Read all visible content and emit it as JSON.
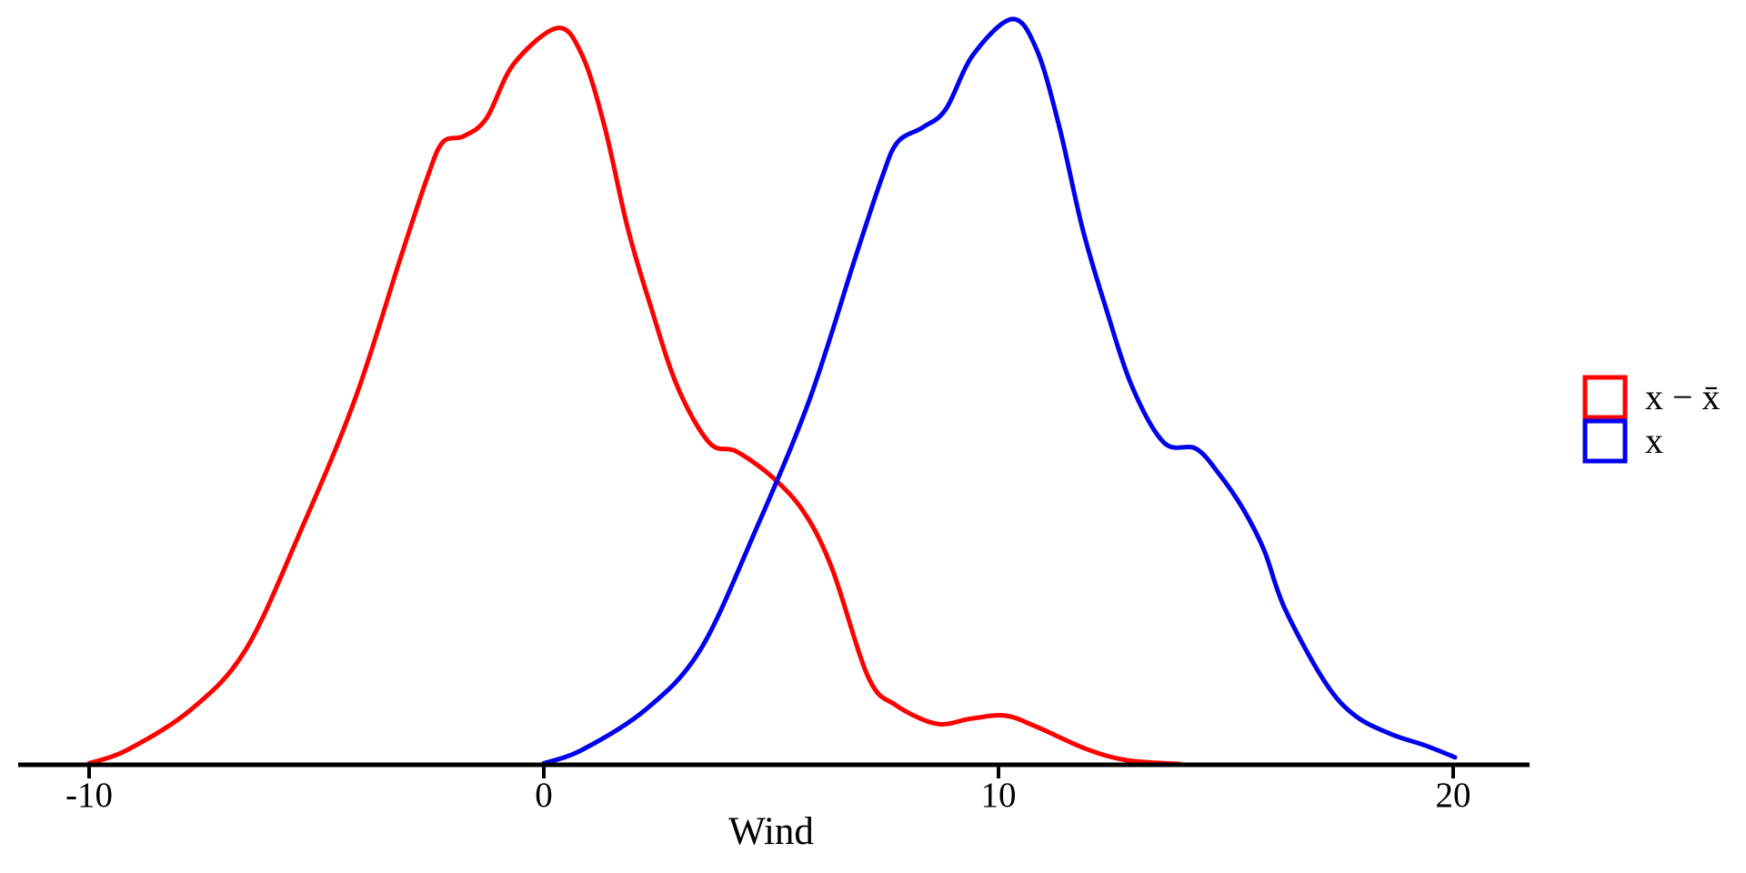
{
  "figure": {
    "background_color": "#FFFFFF",
    "axis_color": "#000000",
    "text_color": "#000000"
  },
  "chart_data": {
    "type": "line",
    "subtype": "kernel-density",
    "title": "",
    "xlabel": "Wind",
    "ylabel": "",
    "xlim": [
      -10,
      20
    ],
    "x_ticks": [
      -10,
      0,
      10,
      20
    ],
    "x_tick_labels": [
      "-10",
      "0",
      "10",
      "20"
    ],
    "y_axis_shown": false,
    "y_units": "relative density (0 = baseline, 1 = maximum of blue curve)",
    "grid": false,
    "legend_position": "right",
    "series": [
      {
        "name": "x − x̄",
        "color": "#FF0000",
        "points": [
          [
            -10.0,
            0.002
          ],
          [
            -9.16,
            0.02
          ],
          [
            -7.76,
            0.074
          ],
          [
            -6.56,
            0.154
          ],
          [
            -5.36,
            0.312
          ],
          [
            -4.16,
            0.489
          ],
          [
            -3.16,
            0.678
          ],
          [
            -2.56,
            0.788
          ],
          [
            -2.22,
            0.835
          ],
          [
            -1.76,
            0.843
          ],
          [
            -1.26,
            0.867
          ],
          [
            -0.66,
            0.94
          ],
          [
            0.3,
            0.988
          ],
          [
            0.84,
            0.952
          ],
          [
            1.34,
            0.855
          ],
          [
            1.84,
            0.721
          ],
          [
            2.34,
            0.617
          ],
          [
            2.94,
            0.507
          ],
          [
            3.64,
            0.432
          ],
          [
            4.24,
            0.42
          ],
          [
            5.04,
            0.385
          ],
          [
            5.74,
            0.337
          ],
          [
            6.34,
            0.263
          ],
          [
            7.14,
            0.117
          ],
          [
            7.74,
            0.08
          ],
          [
            8.64,
            0.055
          ],
          [
            9.4,
            0.062
          ],
          [
            10.14,
            0.066
          ],
          [
            10.8,
            0.052
          ],
          [
            11.94,
            0.021
          ],
          [
            12.84,
            0.006
          ],
          [
            14.0,
            0.001
          ]
        ]
      },
      {
        "name": "x",
        "color": "#0000EE",
        "points": [
          [
            0.0,
            0.002
          ],
          [
            0.84,
            0.02
          ],
          [
            2.24,
            0.074
          ],
          [
            3.44,
            0.154
          ],
          [
            4.64,
            0.312
          ],
          [
            5.84,
            0.489
          ],
          [
            6.84,
            0.678
          ],
          [
            7.44,
            0.788
          ],
          [
            7.78,
            0.835
          ],
          [
            8.34,
            0.855
          ],
          [
            8.84,
            0.879
          ],
          [
            9.44,
            0.952
          ],
          [
            10.3,
            1.0
          ],
          [
            10.84,
            0.959
          ],
          [
            11.34,
            0.855
          ],
          [
            11.84,
            0.721
          ],
          [
            12.34,
            0.617
          ],
          [
            12.94,
            0.507
          ],
          [
            13.64,
            0.432
          ],
          [
            14.34,
            0.424
          ],
          [
            14.84,
            0.391
          ],
          [
            15.38,
            0.343
          ],
          [
            15.84,
            0.288
          ],
          [
            16.3,
            0.209
          ],
          [
            17.18,
            0.111
          ],
          [
            17.84,
            0.066
          ],
          [
            18.64,
            0.041
          ],
          [
            19.38,
            0.026
          ],
          [
            20.04,
            0.01
          ]
        ]
      }
    ]
  }
}
